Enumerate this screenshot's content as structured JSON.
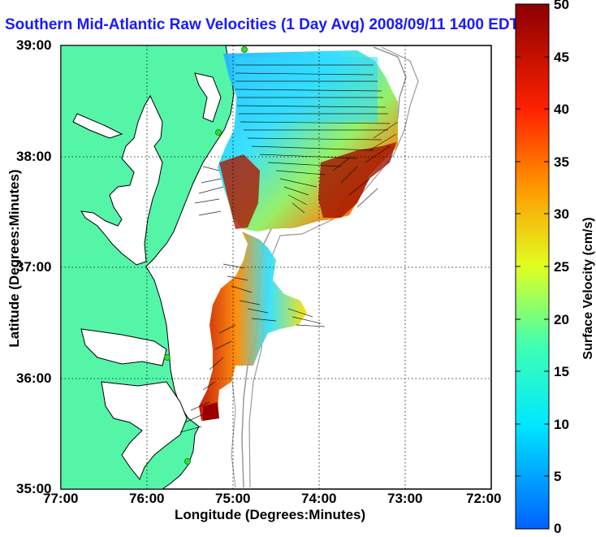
{
  "title": "Southern Mid-Atlantic Raw Velocities (1 Day Avg) 2008/09/11 1400 EDT",
  "x_axis": {
    "label": "Longitude (Degrees:Minutes)",
    "ticks": [
      "77:00",
      "76:00",
      "75:00",
      "74:00",
      "73:00",
      "72:00"
    ]
  },
  "y_axis": {
    "label": "Latitude (Degrees:Minutes)",
    "ticks": [
      "39:00",
      "38:00",
      "37:00",
      "36:00",
      "35:00"
    ]
  },
  "colorbar": {
    "label": "Surface Velocity (cm/s)",
    "ticks": [
      "50",
      "45",
      "40",
      "35",
      "30",
      "25",
      "20",
      "15",
      "10",
      "5",
      "0"
    ],
    "range": [
      0,
      50
    ]
  },
  "colors": {
    "land": "#55f5a8",
    "title": "#1a1aff",
    "coast_line": "#000000",
    "bathymetry": "#999999",
    "station": "#33dd33"
  }
}
